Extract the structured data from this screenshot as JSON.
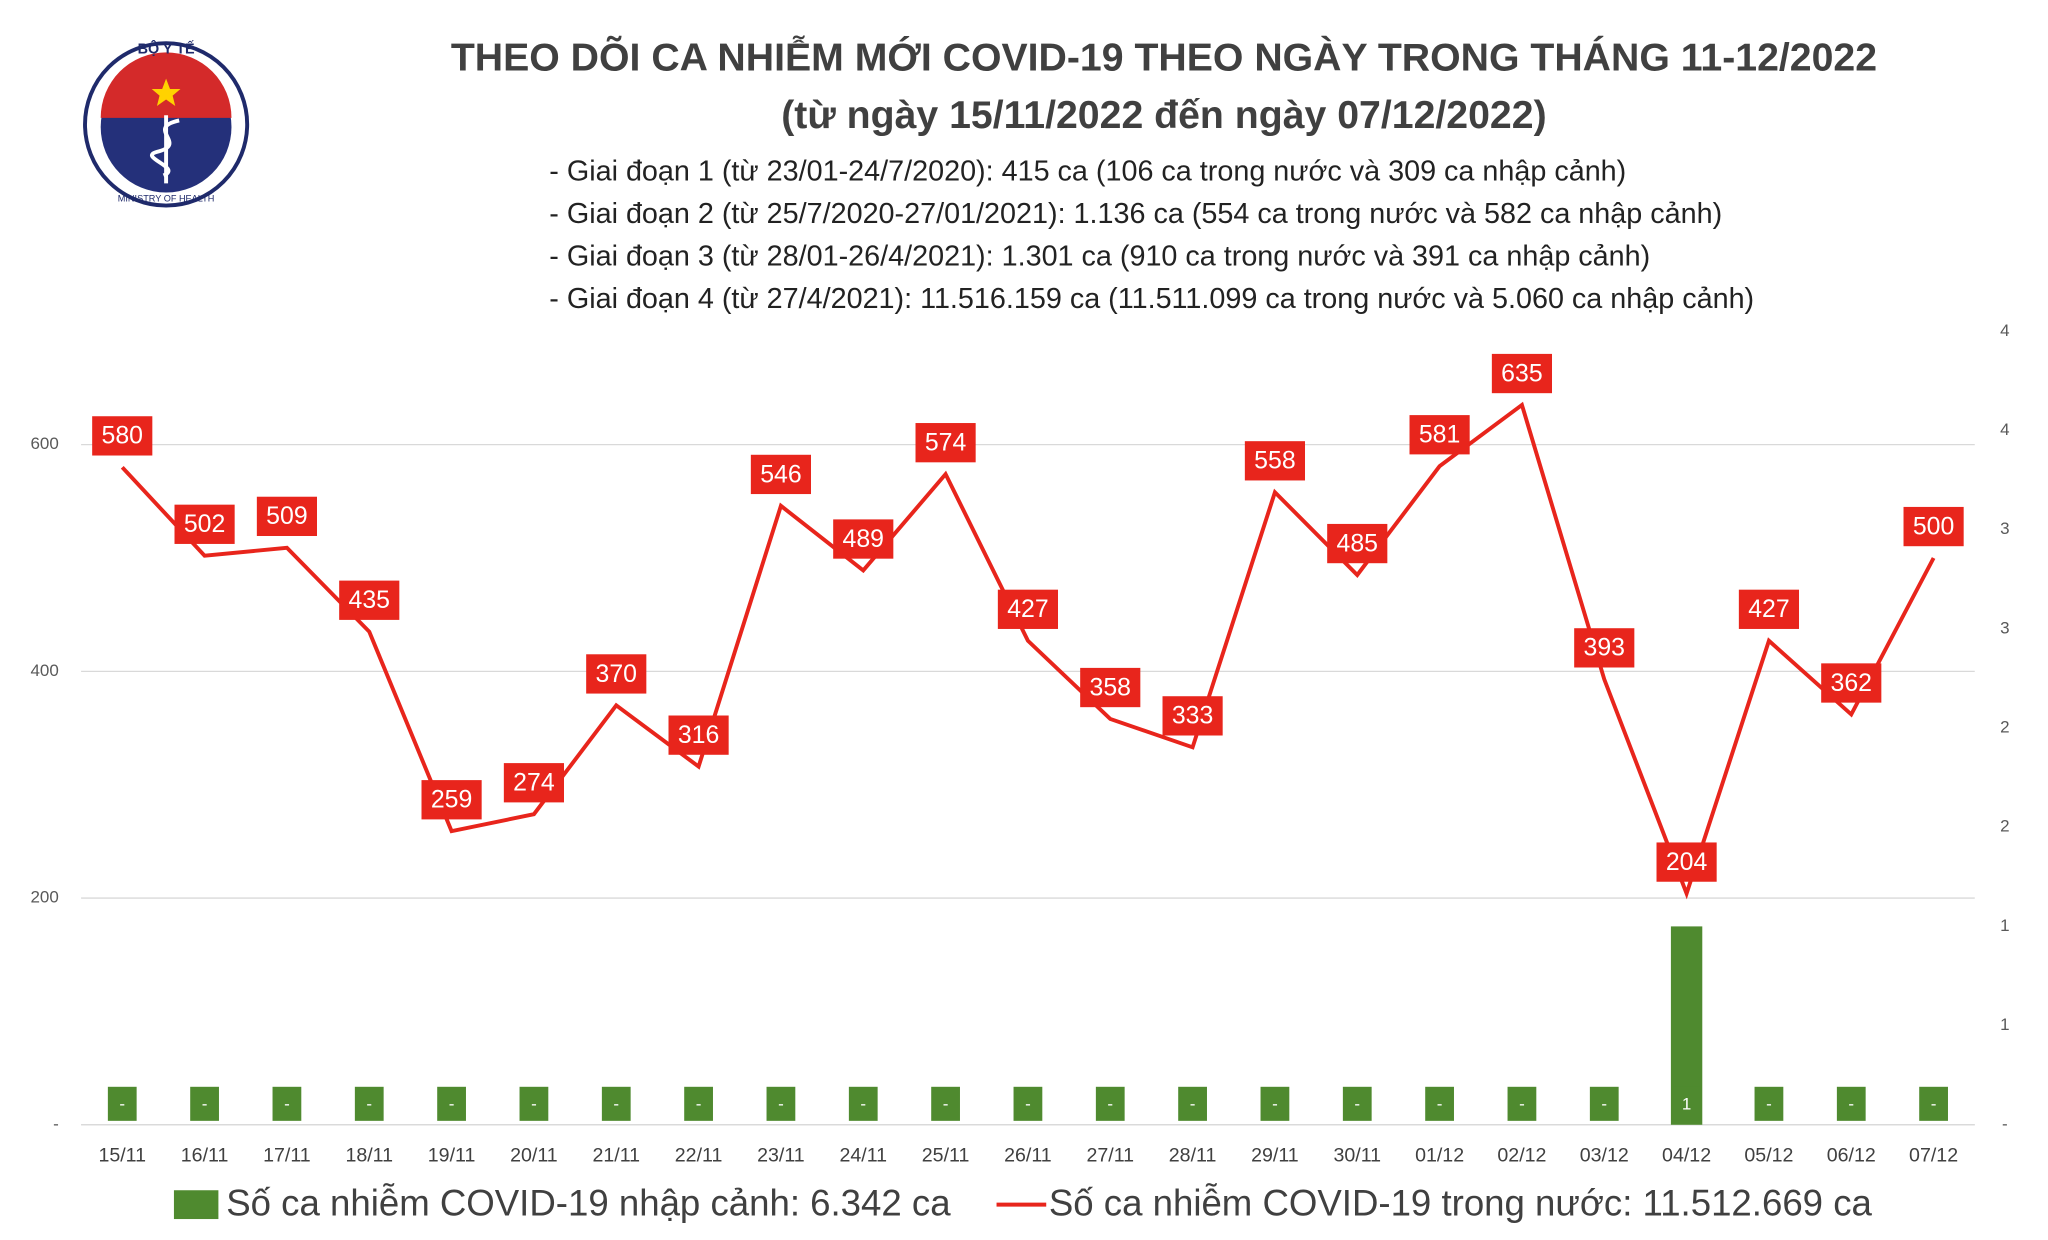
{
  "logo": {
    "top_text": "BỘ Y TẾ",
    "bottom_text": "MINISTRY OF HEALTH"
  },
  "chart_data": {
    "type": "bar-line",
    "title": "THEO DÕI CA NHIỄM MỚI COVID-19 THEO NGÀY TRONG THÁNG 11-12/2022",
    "subtitle": "(từ ngày 15/11/2022 đến ngày 07/12/2022)",
    "annotations": [
      "- Giai đoạn 1 (từ 23/01-24/7/2020): 415 ca (106 ca trong nước và 309 ca nhập cảnh)",
      "- Giai đoạn 2 (từ 25/7/2020-27/01/2021): 1.136 ca (554 ca trong nước và 582 ca nhập cảnh)",
      "- Giai đoạn 3 (từ 28/01-26/4/2021): 1.301 ca (910 ca trong nước và 391 ca nhập cảnh)",
      "- Giai đoạn 4 (từ 27/4/2021): 11.516.159 ca (11.511.099 ca trong nước và 5.060 ca nhập cảnh)"
    ],
    "categories": [
      "15/11",
      "16/11",
      "17/11",
      "18/11",
      "19/11",
      "20/11",
      "21/11",
      "22/11",
      "23/11",
      "24/11",
      "25/11",
      "26/11",
      "27/11",
      "28/11",
      "29/11",
      "30/11",
      "01/12",
      "02/12",
      "03/12",
      "04/12",
      "05/12",
      "06/12",
      "07/12"
    ],
    "series": [
      {
        "name": "Số ca nhiễm COVID-19 nhập cảnh: 6.342 ca",
        "type": "bar",
        "axis": "y2",
        "color": "#4f8a2f",
        "values": [
          0,
          0,
          0,
          0,
          0,
          0,
          0,
          0,
          0,
          0,
          0,
          0,
          0,
          0,
          0,
          0,
          0,
          0,
          0,
          1,
          0,
          0,
          0
        ],
        "value_labels": [
          "-",
          "-",
          "-",
          "-",
          "-",
          "-",
          "-",
          "-",
          "-",
          "-",
          "-",
          "-",
          "-",
          "-",
          "-",
          "-",
          "-",
          "-",
          "-",
          "1",
          "-",
          "-",
          "-"
        ]
      },
      {
        "name": "Số ca nhiễm COVID-19 trong nước: 11.512.669 ca",
        "type": "line",
        "axis": "y",
        "color": "#e8251c",
        "values": [
          580,
          502,
          509,
          435,
          259,
          274,
          370,
          316,
          546,
          489,
          574,
          427,
          358,
          333,
          558,
          485,
          581,
          635,
          393,
          204,
          427,
          362,
          500
        ]
      }
    ],
    "ylim": [
      0,
      700
    ],
    "yticks": [
      {
        "value": 0,
        "label": "-"
      },
      200,
      400,
      600
    ],
    "y2lim": [
      0,
      4
    ],
    "y2ticks": [
      {
        "value": 0,
        "label": "-"
      },
      {
        "value": 0.5,
        "label": "1"
      },
      {
        "value": 1,
        "label": "1"
      },
      {
        "value": 1.5,
        "label": "2"
      },
      {
        "value": 2,
        "label": "2"
      },
      {
        "value": 2.5,
        "label": "3"
      },
      {
        "value": 3,
        "label": "3"
      },
      {
        "value": 3.5,
        "label": "4"
      },
      {
        "value": 4,
        "label": "4"
      }
    ],
    "grid": true
  }
}
